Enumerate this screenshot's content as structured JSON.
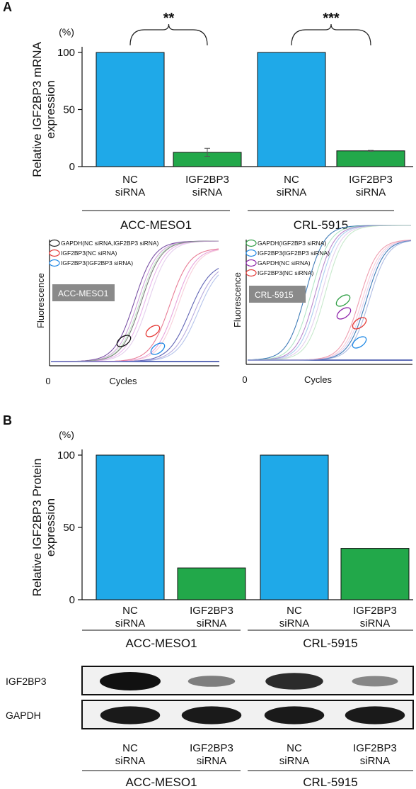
{
  "colors": {
    "nc": "#1fa9e8",
    "igf": "#22a84a",
    "blot_bg": "#f1f1f1",
    "band": "#111111"
  },
  "chart_data": [
    {
      "panel": "A",
      "type": "bar",
      "ylabel": "Relative IGF2BP3 mRNA\nexpression",
      "unit": "(%)",
      "ylim": [
        0,
        100
      ],
      "yticks": [
        "0",
        "50",
        "100"
      ],
      "categories": [
        "NC\nsiRNA",
        "IGF2BP3\nsiRNA",
        "NC\nsiRNA",
        "IGF2BP3\nsiRNA"
      ],
      "groups": [
        "ACC-MESO1",
        "CRL-5915"
      ],
      "values": [
        100,
        12.5,
        100,
        13.8
      ],
      "errors": [
        0,
        3.5,
        0,
        0.4
      ],
      "significance": [
        "**",
        "***"
      ]
    },
    {
      "panel": "A",
      "type": "line",
      "cell_line": "ACC-MESO1",
      "xlabel": "Cycles",
      "ylabel": "Fluorescence",
      "x_origin": "0",
      "legend": [
        {
          "label": "GAPDH(NC siRNA,IGF2BP3 siRNA)",
          "color": "#222222"
        },
        {
          "label": "IGF2BP3(NC siRNA)",
          "color": "#e53935"
        },
        {
          "label": "IGF2BP3(IGF2BP3 siRNA)",
          "color": "#1e88e5"
        }
      ]
    },
    {
      "panel": "A",
      "type": "line",
      "cell_line": "CRL-5915",
      "xlabel": "Cycles",
      "ylabel": "Fluorescence",
      "x_origin": "0",
      "legend": [
        {
          "label": "GAPDH(IGF2BP3 siRNA)",
          "color": "#2e9e44"
        },
        {
          "label": "IGF2BP3(IGF2BP3 siRNA)",
          "color": "#1e88e5"
        },
        {
          "label": "GAPDH(NC siRNA)",
          "color": "#8e24aa"
        },
        {
          "label": "IGF2BP3(NC siRNA)",
          "color": "#e53935"
        }
      ]
    },
    {
      "panel": "B",
      "type": "bar",
      "ylabel": "Relative IGF2BP3 Protein\nexpression",
      "unit": "(%)",
      "ylim": [
        0,
        100
      ],
      "yticks": [
        "0",
        "50",
        "100"
      ],
      "categories": [
        "NC\nsiRNA",
        "IGF2BP3\nsiRNA",
        "NC\nsiRNA",
        "IGF2BP3\nsiRNA"
      ],
      "groups": [
        "ACC-MESO1",
        "CRL-5915"
      ],
      "values": [
        100,
        22,
        100,
        35.5
      ]
    }
  ],
  "panels": {
    "a": "A",
    "b": "B"
  },
  "blot": {
    "rows": [
      {
        "label": "IGF2BP3",
        "intensities": [
          1.0,
          0.35,
          0.85,
          0.3
        ]
      },
      {
        "label": "GAPDH",
        "intensities": [
          0.95,
          0.95,
          0.95,
          0.95
        ]
      }
    ],
    "categories": [
      "NC\nsiRNA",
      "IGF2BP3\nsiRNA",
      "NC\nsiRNA",
      "IGF2BP3\nsiRNA"
    ],
    "groups": [
      "ACC-MESO1",
      "CRL-5915"
    ]
  }
}
